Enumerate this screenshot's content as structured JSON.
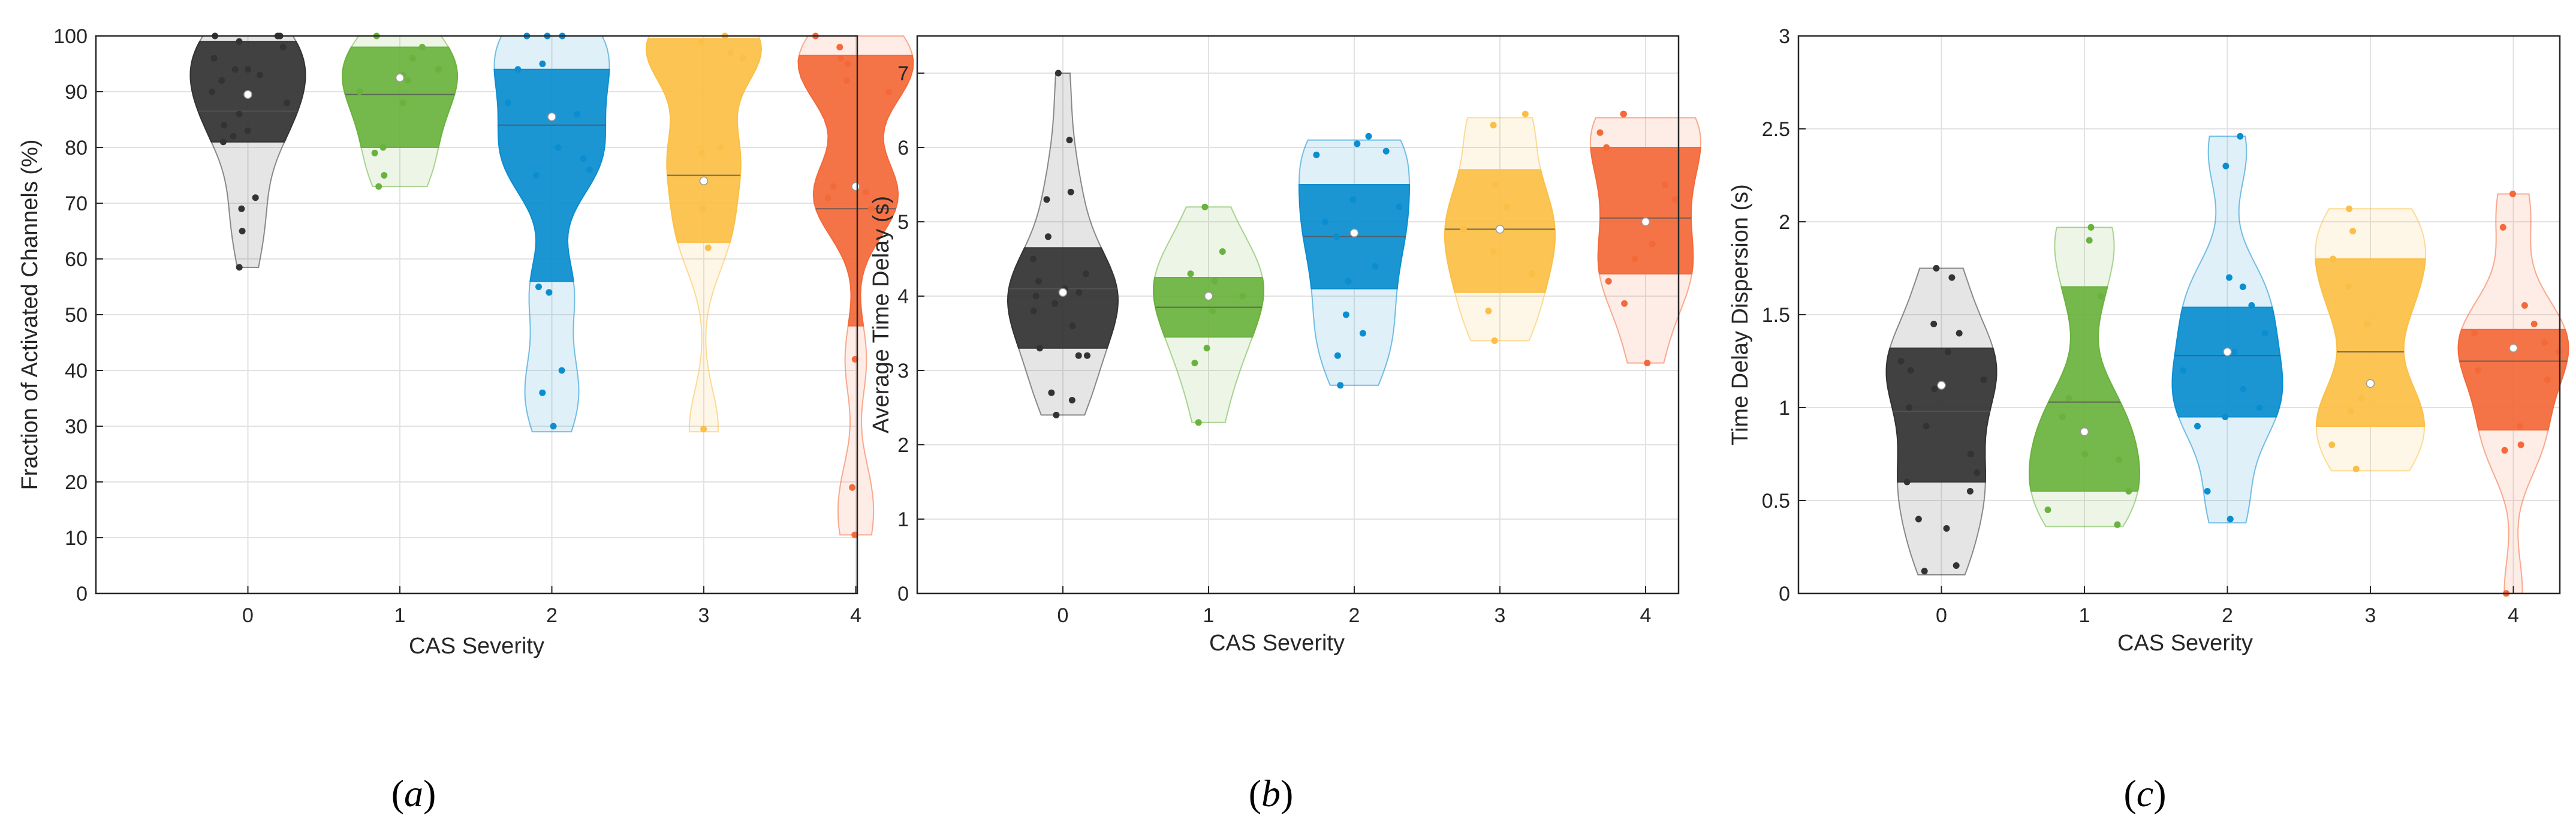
{
  "figure": {
    "subfigure_labels": [
      {
        "pre": "(",
        "letter": "a",
        "post": ")"
      },
      {
        "pre": "(",
        "letter": "b",
        "post": ")"
      },
      {
        "pre": "(",
        "letter": "c",
        "post": ")"
      }
    ]
  },
  "chart_data": [
    {
      "type": "violin",
      "title": "",
      "xlabel": "CAS Severity",
      "ylabel": "Fraction of Activated Channels (%)",
      "categories": [
        "0",
        "1",
        "2",
        "3",
        "4"
      ],
      "ylim": [
        0,
        100
      ],
      "yticks": [
        0,
        10,
        20,
        30,
        40,
        50,
        60,
        70,
        80,
        90,
        100
      ],
      "ytick_labels": [
        "0",
        "10",
        "20",
        "30",
        "40",
        "50",
        "60",
        "70",
        "80",
        "90",
        "100"
      ],
      "series": [
        {
          "name": "0",
          "color": "#333333",
          "min": 58.5,
          "max": 100,
          "q1": 81,
          "median": 86.5,
          "q3": 99,
          "mean": 89.5,
          "points": [
            100,
            100,
            100,
            99,
            98,
            96,
            94,
            94,
            93,
            92,
            90,
            88,
            86,
            84,
            83,
            82,
            81,
            71,
            69,
            65,
            58.5
          ]
        },
        {
          "name": "1",
          "color": "#6ab23e",
          "min": 73,
          "max": 100,
          "q1": 80,
          "median": 89.5,
          "q3": 98,
          "mean": 92.5,
          "points": [
            100,
            98,
            96,
            94,
            93,
            92,
            90,
            88,
            80,
            79,
            75,
            73
          ]
        },
        {
          "name": "2",
          "color": "#0b8ecf",
          "min": 29,
          "max": 100,
          "q1": 56,
          "median": 84,
          "q3": 94,
          "mean": 85.5,
          "points": [
            100,
            100,
            100,
            95,
            94,
            88,
            86,
            80,
            78,
            76,
            75,
            55,
            54,
            40,
            36,
            30
          ]
        },
        {
          "name": "3",
          "color": "#fbbf47",
          "min": 29,
          "max": 100,
          "q1": 63,
          "median": 75,
          "q3": 99.5,
          "mean": 74,
          "points": [
            100,
            99,
            97,
            96,
            80,
            79,
            69,
            62,
            29.5
          ]
        },
        {
          "name": "4",
          "color": "#f4693a",
          "min": 10.5,
          "max": 100,
          "q1": 48,
          "median": 69,
          "q3": 96.5,
          "mean": 73,
          "points": [
            100,
            98,
            96,
            95,
            92,
            90,
            73,
            72,
            71,
            69,
            42,
            19,
            10.5
          ]
        }
      ]
    },
    {
      "type": "violin",
      "title": "",
      "xlabel": "CAS Severity",
      "ylabel": "Average Time Delay (s)",
      "categories": [
        "0",
        "1",
        "2",
        "3",
        "4"
      ],
      "ylim": [
        0,
        7.5
      ],
      "yticks": [
        0,
        1,
        2,
        3,
        4,
        5,
        6,
        7
      ],
      "ytick_labels": [
        "0",
        "1",
        "2",
        "3",
        "4",
        "5",
        "6",
        "7"
      ],
      "series": [
        {
          "name": "0",
          "color": "#333333",
          "min": 2.4,
          "max": 7,
          "q1": 3.3,
          "median": 4.1,
          "q3": 4.65,
          "mean": 4.05,
          "points": [
            7,
            6.1,
            5.4,
            5.3,
            4.8,
            4.5,
            4.3,
            4.2,
            4.1,
            4.05,
            4,
            3.9,
            3.8,
            3.6,
            3.3,
            3.2,
            3.2,
            2.7,
            2.6,
            2.4
          ]
        },
        {
          "name": "1",
          "color": "#6ab23e",
          "min": 2.3,
          "max": 5.2,
          "q1": 3.45,
          "median": 3.85,
          "q3": 4.25,
          "mean": 4,
          "points": [
            5.2,
            4.6,
            4.3,
            4.2,
            4,
            3.8,
            3.3,
            3.1,
            2.3
          ]
        },
        {
          "name": "2",
          "color": "#0b8ecf",
          "min": 2.8,
          "max": 6.1,
          "q1": 4.1,
          "median": 4.8,
          "q3": 5.5,
          "mean": 4.85,
          "points": [
            6.15,
            6.05,
            5.95,
            5.9,
            5.3,
            5.2,
            5,
            4.8,
            4.4,
            4.2,
            3.75,
            3.5,
            3.2,
            2.8
          ]
        },
        {
          "name": "3",
          "color": "#fbbf47",
          "min": 3.4,
          "max": 6.4,
          "q1": 4.05,
          "median": 4.9,
          "q3": 5.7,
          "mean": 4.9,
          "points": [
            6.45,
            6.3,
            5.5,
            5.2,
            4.9,
            4.6,
            4.3,
            3.8,
            3.4
          ]
        },
        {
          "name": "4",
          "color": "#f4693a",
          "min": 3.1,
          "max": 6.4,
          "q1": 4.3,
          "median": 5.05,
          "q3": 6,
          "mean": 5,
          "points": [
            6.45,
            6.45,
            6.2,
            6,
            5.5,
            5.3,
            4.7,
            4.5,
            4.2,
            3.9,
            3.1
          ]
        }
      ]
    },
    {
      "type": "violin",
      "title": "",
      "xlabel": "CAS Severity",
      "ylabel": "Time Delay Dispersion (s)",
      "categories": [
        "0",
        "1",
        "2",
        "3",
        "4"
      ],
      "ylim": [
        0,
        3
      ],
      "yticks": [
        0,
        0.5,
        1,
        1.5,
        2,
        2.5,
        3
      ],
      "ytick_labels": [
        "0",
        "0.5",
        "1",
        "1.5",
        "2",
        "2.5",
        "3"
      ],
      "series": [
        {
          "name": "0",
          "color": "#333333",
          "min": 0.1,
          "max": 1.75,
          "q1": 0.6,
          "median": 0.98,
          "q3": 1.32,
          "mean": 1.12,
          "points": [
            1.75,
            1.7,
            1.45,
            1.4,
            1.3,
            1.25,
            1.2,
            1.15,
            1.1,
            1,
            0.9,
            0.75,
            0.65,
            0.6,
            0.55,
            0.4,
            0.35,
            0.15,
            0.12
          ]
        },
        {
          "name": "1",
          "color": "#6ab23e",
          "min": 0.36,
          "max": 1.97,
          "q1": 0.55,
          "median": 1.03,
          "q3": 1.65,
          "mean": 0.87,
          "points": [
            1.97,
            1.9,
            1.6,
            1.05,
            0.95,
            0.75,
            0.72,
            0.55,
            0.45,
            0.37
          ]
        },
        {
          "name": "2",
          "color": "#0b8ecf",
          "min": 0.38,
          "max": 2.46,
          "q1": 0.95,
          "median": 1.28,
          "q3": 1.54,
          "mean": 1.3,
          "points": [
            2.46,
            2.3,
            1.7,
            1.65,
            1.55,
            1.4,
            1.3,
            1.2,
            1.1,
            1,
            0.95,
            0.9,
            0.55,
            0.4
          ]
        },
        {
          "name": "3",
          "color": "#fbbf47",
          "min": 0.66,
          "max": 2.07,
          "q1": 0.9,
          "median": 1.3,
          "q3": 1.8,
          "mean": 1.13,
          "points": [
            2.07,
            1.95,
            1.8,
            1.65,
            1.45,
            1.05,
            0.98,
            0.8,
            0.67
          ]
        },
        {
          "name": "4",
          "color": "#f4693a",
          "min": 0,
          "max": 2.15,
          "q1": 0.88,
          "median": 1.25,
          "q3": 1.42,
          "mean": 1.32,
          "points": [
            2.15,
            1.97,
            1.55,
            1.45,
            1.4,
            1.35,
            1.3,
            1.2,
            1.15,
            0.9,
            0.8,
            0.77,
            0
          ]
        }
      ]
    }
  ]
}
